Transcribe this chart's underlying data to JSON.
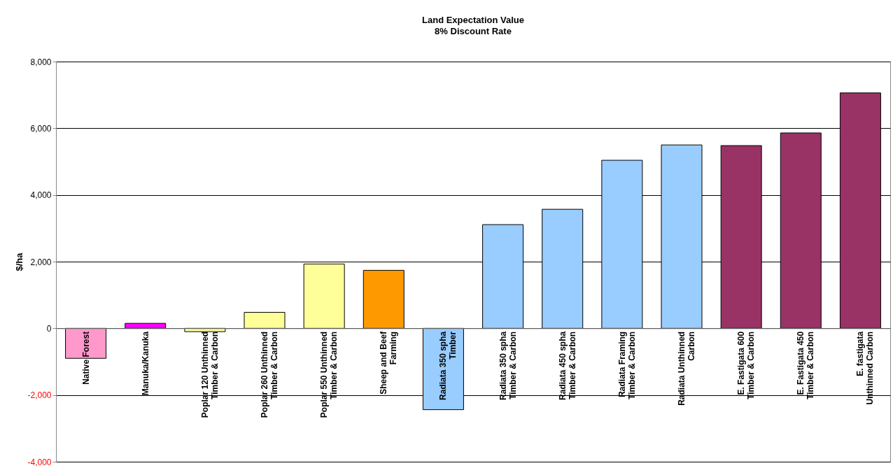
{
  "chart_data": {
    "type": "bar",
    "title": "Land Expectation Value",
    "subtitle": "8% Discount Rate",
    "ylabel": "$/ha",
    "categories": [
      "Native Forest",
      "Manuka/Kanuka",
      "Poplar 120 Unthinned Timber & Carbon",
      "Poplar 260 Unthinned Timber & Carbon",
      "Poplar 550 Unthinned Timber & Carbon",
      "Sheep and Beef Farming",
      "Radiata 350 spha Timber",
      "Radiata 350 spha Timber & Carbon",
      "Radiata 450 spha Timber & Carbon",
      "Radiata Framing Timber & Carbon",
      "Radiata Unthinned Carbon",
      "E. Fastigata 600 Timber & Carbon",
      "E. Fastigata 450 Timber & Carbon",
      "E. fastigata Unthinned Carbon"
    ],
    "values": [
      -900,
      150,
      -100,
      480,
      1930,
      1740,
      -2440,
      3110,
      3570,
      5040,
      5500,
      5480,
      5860,
      7060
    ],
    "colors": [
      "#ff99cc",
      "#ff00ff",
      "#ffff99",
      "#ffff99",
      "#ffff99",
      "#ff9900",
      "#99ccff",
      "#99ccff",
      "#99ccff",
      "#99ccff",
      "#99ccff",
      "#993366",
      "#993366",
      "#993366"
    ],
    "ylim": [
      -4000,
      8000
    ],
    "yticks": [
      {
        "value": -4000,
        "label": "-4,000"
      },
      {
        "value": -2000,
        "label": "-2,000"
      },
      0,
      {
        "value": 2000,
        "label": "2,000"
      },
      {
        "value": 4000,
        "label": "4,000"
      },
      {
        "value": 6000,
        "label": "6,000"
      },
      {
        "value": 8000,
        "label": "8,000"
      }
    ],
    "grid": "y"
  }
}
